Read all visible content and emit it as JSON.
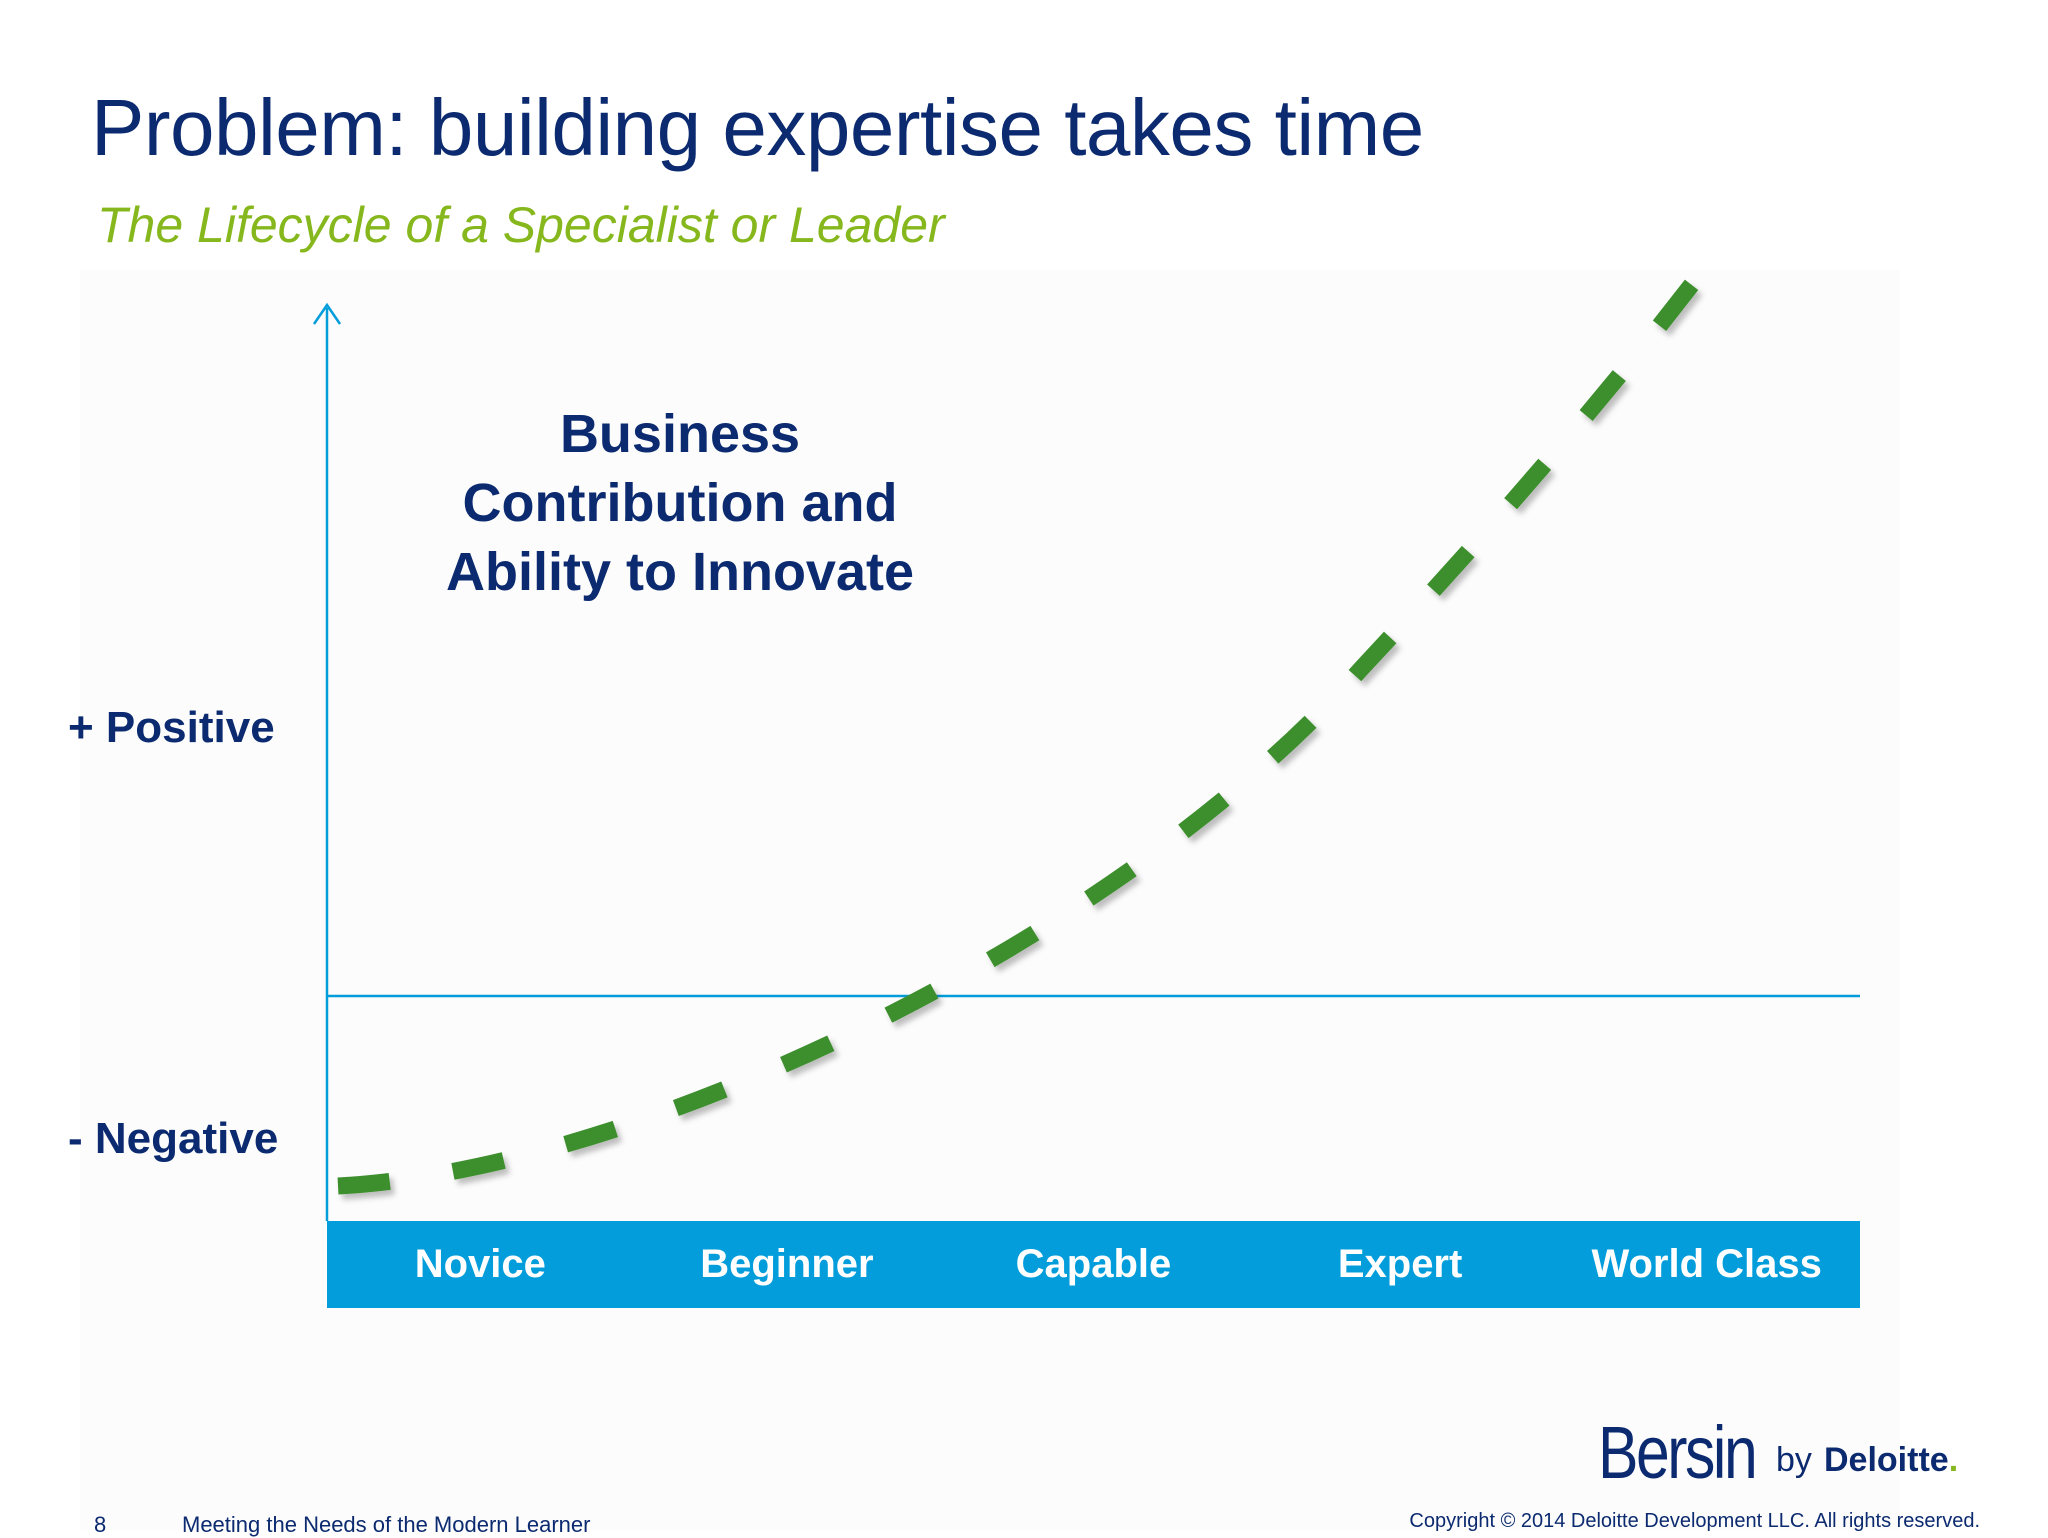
{
  "slide": {
    "title": "Problem: building expertise takes time",
    "subtitle": "The Lifecycle of a Specialist or Leader"
  },
  "chart": {
    "label_line1": "Business",
    "label_line2": "Contribution and",
    "label_line3": "Ability to Innovate",
    "y_positive": "+ Positive",
    "y_negative": "- Negative",
    "stages": [
      "Novice",
      "Beginner",
      "Capable",
      "Expert",
      "World Class"
    ]
  },
  "footer": {
    "page_number": "8",
    "deck_title": "Meeting the Needs of the Modern Learner",
    "copyright": "Copyright © 2014 Deloitte Development LLC. All rights reserved."
  },
  "logo": {
    "main": "Bersin",
    "by": "by",
    "brand": "Deloitte",
    "dot": "."
  },
  "colors": {
    "title": "#0b2a6f",
    "subtitle": "#86b81e",
    "axis": "#039ddb",
    "curve": "#3e8f2e",
    "stage_bar": "#039ddb"
  }
}
